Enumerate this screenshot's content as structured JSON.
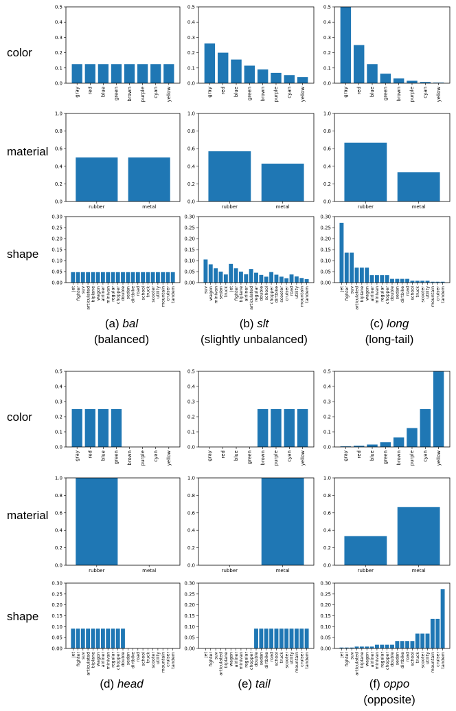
{
  "row_labels": [
    "color",
    "material",
    "shape"
  ],
  "captions": [
    {
      "letter": "(a)",
      "name": "bal",
      "desc": "(balanced)"
    },
    {
      "letter": "(b)",
      "name": "slt",
      "desc": "(slightly unbalanced)"
    },
    {
      "letter": "(c)",
      "name": "long",
      "desc": "(long-tail)"
    },
    {
      "letter": "(d)",
      "name": "head",
      "desc": ""
    },
    {
      "letter": "(e)",
      "name": "tail",
      "desc": ""
    },
    {
      "letter": "(f)",
      "name": "oppo",
      "desc": "(opposite)"
    }
  ],
  "colors": {
    "bar": "#1f77b4",
    "axis": "#000000"
  },
  "chart_data": [
    {
      "id": "a-color",
      "type": "bar",
      "categories": [
        "gray",
        "red",
        "blue",
        "green",
        "brown",
        "purple",
        "cyan",
        "yellow"
      ],
      "values": [
        0.125,
        0.125,
        0.125,
        0.125,
        0.125,
        0.125,
        0.125,
        0.125
      ],
      "ylim": [
        0,
        0.5
      ],
      "yticks": [
        "0.0",
        "0.1",
        "0.2",
        "0.3",
        "0.4",
        "0.5"
      ]
    },
    {
      "id": "a-material",
      "type": "bar",
      "categories": [
        "rubber",
        "metal"
      ],
      "values": [
        0.5,
        0.5
      ],
      "ylim": [
        0,
        1.0
      ],
      "yticks": [
        "0.0",
        "0.2",
        "0.4",
        "0.6",
        "0.8",
        "1.0"
      ]
    },
    {
      "id": "a-shape",
      "type": "bar",
      "categories": [
        "jet",
        "fighter",
        "suv",
        "articulated",
        "biplane",
        "wagon",
        "airliner",
        "minivan",
        "regular",
        "chopper",
        "double",
        "sedan",
        "dirtbike",
        "road",
        "school",
        "truck",
        "scooter",
        "utility",
        "mountain",
        "cruiser",
        "tandem"
      ],
      "values": [
        0.0476,
        0.0476,
        0.0476,
        0.0476,
        0.0476,
        0.0476,
        0.0476,
        0.0476,
        0.0476,
        0.0476,
        0.0476,
        0.0476,
        0.0476,
        0.0476,
        0.0476,
        0.0476,
        0.0476,
        0.0476,
        0.0476,
        0.0476,
        0.0476
      ],
      "ylim": [
        0,
        0.3
      ],
      "yticks": [
        "0.00",
        "0.05",
        "0.10",
        "0.15",
        "0.20",
        "0.25",
        "0.30"
      ]
    },
    {
      "id": "b-color",
      "type": "bar",
      "categories": [
        "gray",
        "red",
        "blue",
        "green",
        "brown",
        "purple",
        "cyan",
        "yellow"
      ],
      "values": [
        0.26,
        0.2,
        0.155,
        0.115,
        0.09,
        0.068,
        0.053,
        0.04
      ],
      "ylim": [
        0,
        0.5
      ],
      "yticks": [
        "0.0",
        "0.1",
        "0.2",
        "0.3",
        "0.4",
        "0.5"
      ]
    },
    {
      "id": "b-material",
      "type": "bar",
      "categories": [
        "rubber",
        "metal"
      ],
      "values": [
        0.57,
        0.43
      ],
      "ylim": [
        0,
        1.0
      ],
      "yticks": [
        "0.0",
        "0.2",
        "0.4",
        "0.6",
        "0.8",
        "1.0"
      ]
    },
    {
      "id": "b-shape",
      "type": "bar",
      "categories": [
        "suv",
        "wagon",
        "minivan",
        "sedan",
        "truck",
        "jet",
        "fighter",
        "biplane",
        "airliner",
        "articulated",
        "regular",
        "double",
        "school",
        "chopper",
        "dirtbike",
        "scooter",
        "cruiser",
        "road",
        "utility",
        "mountain",
        "tandem"
      ],
      "values": [
        0.105,
        0.083,
        0.065,
        0.05,
        0.037,
        0.085,
        0.065,
        0.05,
        0.038,
        0.062,
        0.045,
        0.035,
        0.027,
        0.048,
        0.036,
        0.027,
        0.02,
        0.037,
        0.028,
        0.021,
        0.016
      ],
      "ylim": [
        0,
        0.3
      ],
      "yticks": [
        "0.00",
        "0.05",
        "0.10",
        "0.15",
        "0.20",
        "0.25",
        "0.30"
      ]
    },
    {
      "id": "c-color",
      "type": "bar",
      "categories": [
        "gray",
        "red",
        "blue",
        "green",
        "brown",
        "purple",
        "cyan",
        "yellow"
      ],
      "values": [
        0.5,
        0.25,
        0.125,
        0.0625,
        0.031,
        0.016,
        0.008,
        0.004
      ],
      "ylim": [
        0,
        0.5
      ],
      "yticks": [
        "0.0",
        "0.1",
        "0.2",
        "0.3",
        "0.4",
        "0.5"
      ]
    },
    {
      "id": "c-material",
      "type": "bar",
      "categories": [
        "rubber",
        "metal"
      ],
      "values": [
        0.667,
        0.333
      ],
      "ylim": [
        0,
        1.0
      ],
      "yticks": [
        "0.0",
        "0.2",
        "0.4",
        "0.6",
        "0.8",
        "1.0"
      ]
    },
    {
      "id": "c-shape",
      "type": "bar",
      "categories": [
        "jet",
        "fighter",
        "suv",
        "articulated",
        "biplane",
        "wagon",
        "airliner",
        "minivan",
        "regular",
        "chopper",
        "double",
        "sedan",
        "dirtbike",
        "road",
        "school",
        "truck",
        "scooter",
        "utility",
        "mountain",
        "cruiser",
        "tandem"
      ],
      "values": [
        0.272,
        0.136,
        0.136,
        0.068,
        0.068,
        0.068,
        0.034,
        0.034,
        0.034,
        0.034,
        0.017,
        0.017,
        0.017,
        0.017,
        0.0085,
        0.0085,
        0.0085,
        0.0085,
        0.004,
        0.004,
        0.004
      ],
      "ylim": [
        0,
        0.3
      ],
      "yticks": [
        "0.00",
        "0.05",
        "0.10",
        "0.15",
        "0.20",
        "0.25",
        "0.30"
      ]
    },
    {
      "id": "d-color",
      "type": "bar",
      "categories": [
        "gray",
        "red",
        "blue",
        "green",
        "brown",
        "purple",
        "cyan",
        "yellow"
      ],
      "values": [
        0.25,
        0.25,
        0.25,
        0.25,
        0,
        0,
        0,
        0
      ],
      "ylim": [
        0,
        0.5
      ],
      "yticks": [
        "0.0",
        "0.1",
        "0.2",
        "0.3",
        "0.4",
        "0.5"
      ]
    },
    {
      "id": "d-material",
      "type": "bar",
      "categories": [
        "rubber",
        "metal"
      ],
      "values": [
        1.0,
        0
      ],
      "ylim": [
        0,
        1.0
      ],
      "yticks": [
        "0.0",
        "0.2",
        "0.4",
        "0.6",
        "0.8",
        "1.0"
      ]
    },
    {
      "id": "d-shape",
      "type": "bar",
      "categories": [
        "jet",
        "fighter",
        "suv",
        "articulated",
        "biplane",
        "wagon",
        "airliner",
        "minivan",
        "regular",
        "chopper",
        "double",
        "sedan",
        "dirtbike",
        "road",
        "school",
        "truck",
        "scooter",
        "utility",
        "mountain",
        "cruiser",
        "tandem"
      ],
      "values": [
        0.0909,
        0.0909,
        0.0909,
        0.0909,
        0.0909,
        0.0909,
        0.0909,
        0.0909,
        0.0909,
        0.0909,
        0.0909,
        0,
        0,
        0,
        0,
        0,
        0,
        0,
        0,
        0,
        0
      ],
      "ylim": [
        0,
        0.3
      ],
      "yticks": [
        "0.00",
        "0.05",
        "0.10",
        "0.15",
        "0.20",
        "0.25",
        "0.30"
      ]
    },
    {
      "id": "e-color",
      "type": "bar",
      "categories": [
        "gray",
        "red",
        "blue",
        "green",
        "brown",
        "purple",
        "cyan",
        "yellow"
      ],
      "values": [
        0,
        0,
        0,
        0,
        0.25,
        0.25,
        0.25,
        0.25
      ],
      "ylim": [
        0,
        0.5
      ],
      "yticks": [
        "0.0",
        "0.1",
        "0.2",
        "0.3",
        "0.4",
        "0.5"
      ]
    },
    {
      "id": "e-material",
      "type": "bar",
      "categories": [
        "rubber",
        "metal"
      ],
      "values": [
        0,
        1.0
      ],
      "ylim": [
        0,
        1.0
      ],
      "yticks": [
        "0.0",
        "0.2",
        "0.4",
        "0.6",
        "0.8",
        "1.0"
      ]
    },
    {
      "id": "e-shape",
      "type": "bar",
      "categories": [
        "jet",
        "fighter",
        "suv",
        "articulated",
        "biplane",
        "wagon",
        "airliner",
        "minivan",
        "regular",
        "chopper",
        "double",
        "sedan",
        "dirtbike",
        "road",
        "school",
        "truck",
        "scooter",
        "utility",
        "mountain",
        "cruiser",
        "tandem"
      ],
      "values": [
        0,
        0,
        0,
        0,
        0,
        0,
        0,
        0,
        0,
        0,
        0.0909,
        0.0909,
        0.0909,
        0.0909,
        0.0909,
        0.0909,
        0.0909,
        0.0909,
        0.0909,
        0.0909,
        0.0909
      ],
      "ylim": [
        0,
        0.3
      ],
      "yticks": [
        "0.00",
        "0.05",
        "0.10",
        "0.15",
        "0.20",
        "0.25",
        "0.30"
      ]
    },
    {
      "id": "f-color",
      "type": "bar",
      "categories": [
        "gray",
        "red",
        "blue",
        "green",
        "brown",
        "purple",
        "cyan",
        "yellow"
      ],
      "values": [
        0.004,
        0.008,
        0.016,
        0.031,
        0.0625,
        0.125,
        0.25,
        0.5
      ],
      "ylim": [
        0,
        0.5
      ],
      "yticks": [
        "0.0",
        "0.1",
        "0.2",
        "0.3",
        "0.4",
        "0.5"
      ]
    },
    {
      "id": "f-material",
      "type": "bar",
      "categories": [
        "rubber",
        "metal"
      ],
      "values": [
        0.333,
        0.667
      ],
      "ylim": [
        0,
        1.0
      ],
      "yticks": [
        "0.0",
        "0.2",
        "0.4",
        "0.6",
        "0.8",
        "1.0"
      ]
    },
    {
      "id": "f-shape",
      "type": "bar",
      "categories": [
        "jet",
        "fighter",
        "suv",
        "articulated",
        "biplane",
        "wagon",
        "airliner",
        "minivan",
        "regular",
        "chopper",
        "double",
        "sedan",
        "dirtbike",
        "road",
        "school",
        "truck",
        "scooter",
        "utility",
        "mountain",
        "cruiser",
        "tandem"
      ],
      "values": [
        0.004,
        0.004,
        0.004,
        0.0085,
        0.0085,
        0.0085,
        0.0085,
        0.017,
        0.017,
        0.017,
        0.017,
        0.034,
        0.034,
        0.034,
        0.034,
        0.068,
        0.068,
        0.068,
        0.136,
        0.136,
        0.272
      ],
      "ylim": [
        0,
        0.3
      ],
      "yticks": [
        "0.00",
        "0.05",
        "0.10",
        "0.15",
        "0.20",
        "0.25",
        "0.30"
      ]
    }
  ]
}
